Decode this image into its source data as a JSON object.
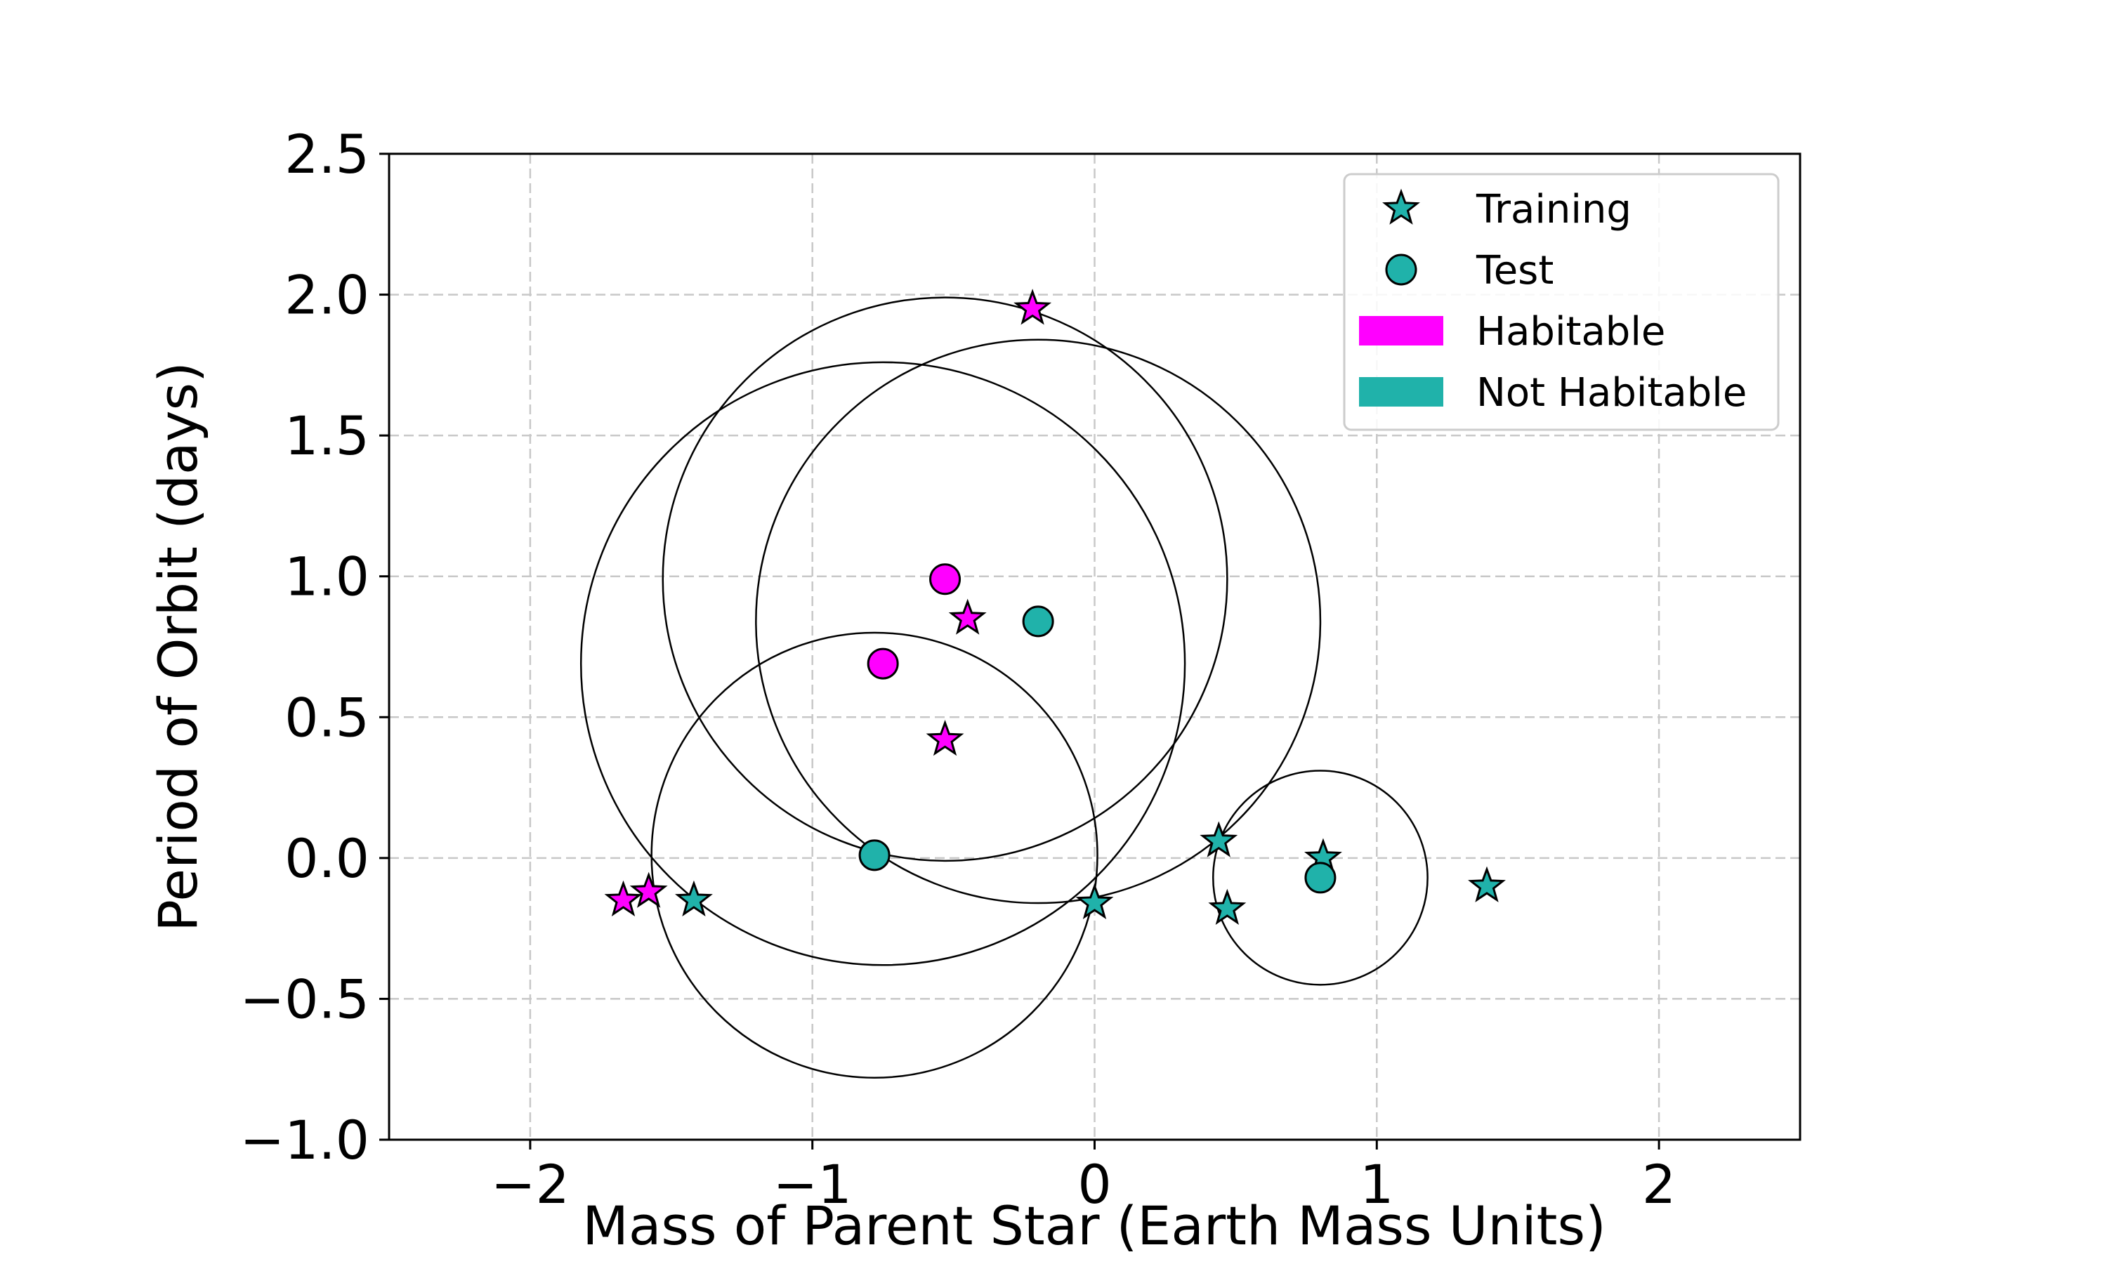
{
  "chart_data": {
    "type": "scatter",
    "xlabel": "Mass of Parent Star (Earth Mass Units)",
    "ylabel": "Period of Orbit (days)",
    "xlim": [
      -2.5,
      2.5
    ],
    "ylim": [
      -1.0,
      2.5
    ],
    "xticks": [
      -2,
      -1,
      0,
      1,
      2
    ],
    "xtick_labels": [
      "−2",
      "−1",
      "0",
      "1",
      "2"
    ],
    "yticks": [
      -1.0,
      -0.5,
      0.0,
      0.5,
      1.0,
      1.5,
      2.0,
      2.5
    ],
    "ytick_labels": [
      "−1.0",
      "−0.5",
      "0.0",
      "0.5",
      "1.0",
      "1.5",
      "2.0",
      "2.5"
    ],
    "grid": true,
    "legend": {
      "placement": "upper-right",
      "entries": [
        {
          "label": "Training",
          "marker": "star",
          "color": "#20b2aa"
        },
        {
          "label": "Test",
          "marker": "circle",
          "color": "#20b2aa"
        },
        {
          "label": "Habitable",
          "marker": "patch",
          "color": "#ff00ff"
        },
        {
          "label": "Not Habitable",
          "marker": "patch",
          "color": "#20b2aa"
        }
      ]
    },
    "colors": {
      "habitable": "#ff00ff",
      "not_habitable": "#20b2aa",
      "circle_stroke": "#000000",
      "grid": "#c8c8c8"
    },
    "series": [
      {
        "name": "Training",
        "marker": "star",
        "points": [
          {
            "x": -0.22,
            "y": 1.95,
            "class": "habitable"
          },
          {
            "x": -0.45,
            "y": 0.85,
            "class": "habitable"
          },
          {
            "x": -0.53,
            "y": 0.42,
            "class": "habitable"
          },
          {
            "x": -1.67,
            "y": -0.15,
            "class": "habitable"
          },
          {
            "x": -1.58,
            "y": -0.12,
            "class": "habitable"
          },
          {
            "x": -1.42,
            "y": -0.15,
            "class": "not_habitable"
          },
          {
            "x": 0.0,
            "y": -0.16,
            "class": "not_habitable"
          },
          {
            "x": 0.44,
            "y": 0.06,
            "class": "not_habitable"
          },
          {
            "x": 0.47,
            "y": -0.18,
            "class": "not_habitable"
          },
          {
            "x": 0.81,
            "y": 0.0,
            "class": "not_habitable"
          },
          {
            "x": 1.39,
            "y": -0.1,
            "class": "not_habitable"
          }
        ]
      },
      {
        "name": "Test",
        "marker": "circle",
        "points": [
          {
            "x": -0.53,
            "y": 0.99,
            "class": "habitable"
          },
          {
            "x": -0.75,
            "y": 0.69,
            "class": "habitable"
          },
          {
            "x": -0.2,
            "y": 0.84,
            "class": "not_habitable"
          },
          {
            "x": -0.78,
            "y": 0.01,
            "class": "not_habitable"
          },
          {
            "x": 0.8,
            "y": -0.07,
            "class": "not_habitable"
          }
        ]
      }
    ],
    "neighborhood_circles": [
      {
        "cx": -0.53,
        "cy": 0.99,
        "r": 1.0
      },
      {
        "cx": -0.75,
        "cy": 0.69,
        "r": 1.07
      },
      {
        "cx": -0.2,
        "cy": 0.84,
        "r": 1.0
      },
      {
        "cx": -0.78,
        "cy": 0.01,
        "r": 0.79
      },
      {
        "cx": 0.8,
        "cy": -0.07,
        "r": 0.38
      }
    ]
  }
}
